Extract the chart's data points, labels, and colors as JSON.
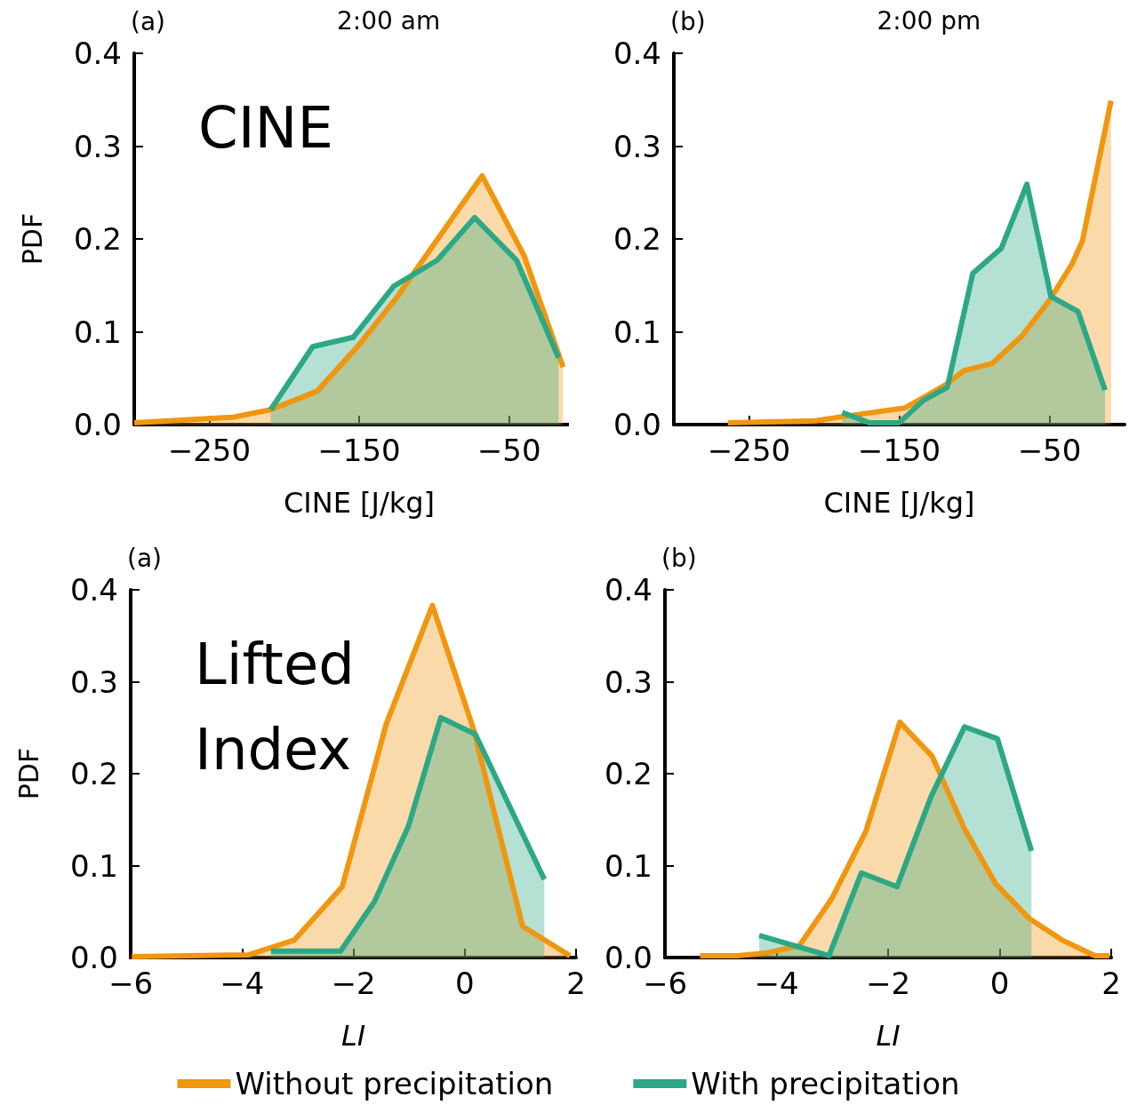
{
  "chart_data": [
    {
      "type": "area",
      "title": "2:00 am",
      "xlabel": "CINE [J/kg]",
      "ylabel": "PDF",
      "annotations": [
        "(a)",
        "CINE"
      ],
      "xlim": [
        -300,
        0
      ],
      "xticks": [
        {
          "value": -250,
          "label": "−250"
        },
        {
          "value": -150,
          "label": "−150"
        },
        {
          "value": -50,
          "label": "−50"
        }
      ],
      "ylim": [
        0,
        0.4
      ],
      "yticks": [
        {
          "value": 0,
          "label": "0.0"
        },
        {
          "value": 0.1,
          "label": "0.1"
        },
        {
          "value": 0.2,
          "label": "0.2"
        },
        {
          "value": 0.3,
          "label": "0.3"
        },
        {
          "value": 0.4,
          "label": "0.4"
        }
      ],
      "series": [
        {
          "color": "#f0960f",
          "x": [
            -300,
            -234,
            -209,
            -178,
            -150,
            -124,
            -98,
            -68,
            -40,
            -14
          ],
          "values": [
            0.002,
            0.008,
            0.016,
            0.036,
            0.086,
            0.139,
            0.199,
            0.268,
            0.182,
            0.062
          ]
        },
        {
          "color": "#2ca886",
          "x": [
            -209,
            -181,
            -154,
            -127,
            -98,
            -73,
            -45,
            -17
          ],
          "values": [
            0.016,
            0.084,
            0.094,
            0.149,
            0.177,
            0.223,
            0.177,
            0.072
          ]
        }
      ]
    },
    {
      "type": "area",
      "title": "2:00 pm",
      "xlabel": "CINE [J/kg]",
      "annotations": [
        "(b)"
      ],
      "xlim": [
        -300,
        0
      ],
      "xticks": [
        {
          "value": -250,
          "label": "−250"
        },
        {
          "value": -150,
          "label": "−150"
        },
        {
          "value": -50,
          "label": "−50"
        }
      ],
      "ylim": [
        0,
        0.4
      ],
      "yticks": [
        {
          "value": 0,
          "label": "0.0"
        },
        {
          "value": 0.1,
          "label": "0.1"
        },
        {
          "value": 0.2,
          "label": "0.2"
        },
        {
          "value": 0.3,
          "label": "0.3"
        },
        {
          "value": 0.4,
          "label": "0.4"
        }
      ],
      "series": [
        {
          "color": "#f0960f",
          "x": [
            -264,
            -206,
            -190,
            -146,
            -134,
            -119,
            -107,
            -88,
            -68,
            -50,
            -35,
            -28,
            -9
          ],
          "values": [
            0.002,
            0.004,
            0.008,
            0.018,
            0.029,
            0.043,
            0.058,
            0.066,
            0.096,
            0.134,
            0.173,
            0.198,
            0.349
          ]
        },
        {
          "color": "#2ca886",
          "x": [
            -188,
            -170,
            -150,
            -134,
            -118,
            -101,
            -82,
            -65,
            -49,
            -31,
            -13
          ],
          "values": [
            0.013,
            0.002,
            0.002,
            0.026,
            0.04,
            0.163,
            0.19,
            0.259,
            0.138,
            0.122,
            0.037
          ]
        }
      ]
    },
    {
      "type": "area",
      "xlabel": "LI",
      "ylabel": "PDF",
      "annotations": [
        "(a)",
        "Lifted Index"
      ],
      "legend": "bottom",
      "xlim": [
        -6,
        2
      ],
      "xticks": [
        {
          "value": -6,
          "label": "−6"
        },
        {
          "value": -4,
          "label": "−4"
        },
        {
          "value": -2,
          "label": "−2"
        },
        {
          "value": 0,
          "label": "0"
        },
        {
          "value": 2,
          "label": "2"
        }
      ],
      "ylim": [
        0,
        0.4
      ],
      "yticks": [
        {
          "value": 0,
          "label": "0.0"
        },
        {
          "value": 0.1,
          "label": "0.1"
        },
        {
          "value": 0.2,
          "label": "0.2"
        },
        {
          "value": 0.3,
          "label": "0.3"
        },
        {
          "value": 0.4,
          "label": "0.4"
        }
      ],
      "series": [
        {
          "name": "Without precipitation",
          "color": "#f0960f",
          "x": [
            -5.98,
            -3.88,
            -3.06,
            -2.2,
            -1.41,
            -0.58,
            0.16,
            1.04,
            1.89
          ],
          "values": [
            0.001,
            0.003,
            0.019,
            0.077,
            0.254,
            0.383,
            0.248,
            0.034,
            0.002
          ]
        },
        {
          "name": "With precipitation",
          "color": "#2ca886",
          "x": [
            -3.48,
            -2.23,
            -1.62,
            -1.01,
            -0.43,
            0.19,
            0.85,
            1.43
          ],
          "values": [
            0.007,
            0.007,
            0.061,
            0.143,
            0.261,
            0.243,
            0.159,
            0.085
          ]
        }
      ]
    },
    {
      "type": "area",
      "xlabel": "LI",
      "annotations": [
        "(b)"
      ],
      "xlim": [
        -6,
        2
      ],
      "xticks": [
        {
          "value": -6,
          "label": "−6"
        },
        {
          "value": -4,
          "label": "−4"
        },
        {
          "value": -2,
          "label": "−2"
        },
        {
          "value": 0,
          "label": "0"
        },
        {
          "value": 2,
          "label": "2"
        }
      ],
      "ylim": [
        0,
        0.4
      ],
      "yticks": [
        {
          "value": 0,
          "label": "0.0"
        },
        {
          "value": 0.1,
          "label": "0.1"
        },
        {
          "value": 0.2,
          "label": "0.2"
        },
        {
          "value": 0.3,
          "label": "0.3"
        },
        {
          "value": 0.4,
          "label": "0.4"
        }
      ],
      "series": [
        {
          "color": "#f0960f",
          "x": [
            -5.37,
            -4.7,
            -4.17,
            -3.59,
            -3.01,
            -2.4,
            -1.79,
            -1.21,
            -0.63,
            -0.07,
            0.54,
            1.12,
            1.71,
            1.97
          ],
          "values": [
            0.002,
            0.002,
            0.005,
            0.013,
            0.064,
            0.137,
            0.256,
            0.219,
            0.14,
            0.08,
            0.042,
            0.019,
            0.002,
            0.002
          ]
        },
        {
          "color": "#2ca886",
          "x": [
            -4.31,
            -3.06,
            -2.48,
            -1.84,
            -1.23,
            -0.63,
            -0.04,
            0.57
          ],
          "values": [
            0.024,
            0.002,
            0.092,
            0.077,
            0.175,
            0.251,
            0.238,
            0.116
          ]
        }
      ]
    }
  ]
}
